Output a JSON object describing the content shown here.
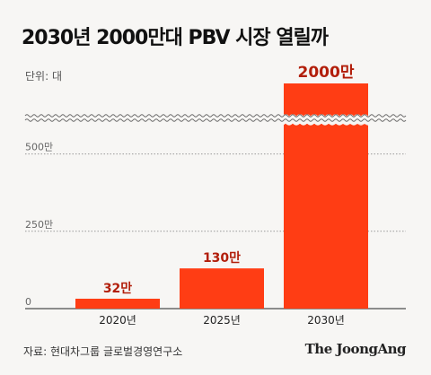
{
  "title": "2030년 2000만대 PBV 시장 열릴까",
  "unit_label": "단위: 대",
  "source": "자료: 현대차그룹 글로벌경영연구소",
  "brand": "The JoongAng",
  "colors": {
    "bar": "#ff3d14",
    "value_label": "#b21e0a",
    "background": "#f7f6f4"
  },
  "chart_data": {
    "type": "bar",
    "categories": [
      "2020년",
      "2025년",
      "2030년"
    ],
    "values": [
      32,
      130,
      2000
    ],
    "value_labels": [
      "32만",
      "130만",
      "2000만"
    ],
    "value_unit": "만",
    "y_ticks": [
      0,
      250,
      500
    ],
    "y_tick_labels": [
      "0",
      "250만",
      "500만"
    ],
    "ylim": [
      0,
      650
    ],
    "axis_break": true,
    "grid": "horizontal dotted",
    "title": "2030년 2000만대 PBV 시장 열릴까",
    "xlabel": "",
    "ylabel": "단위: 대"
  }
}
